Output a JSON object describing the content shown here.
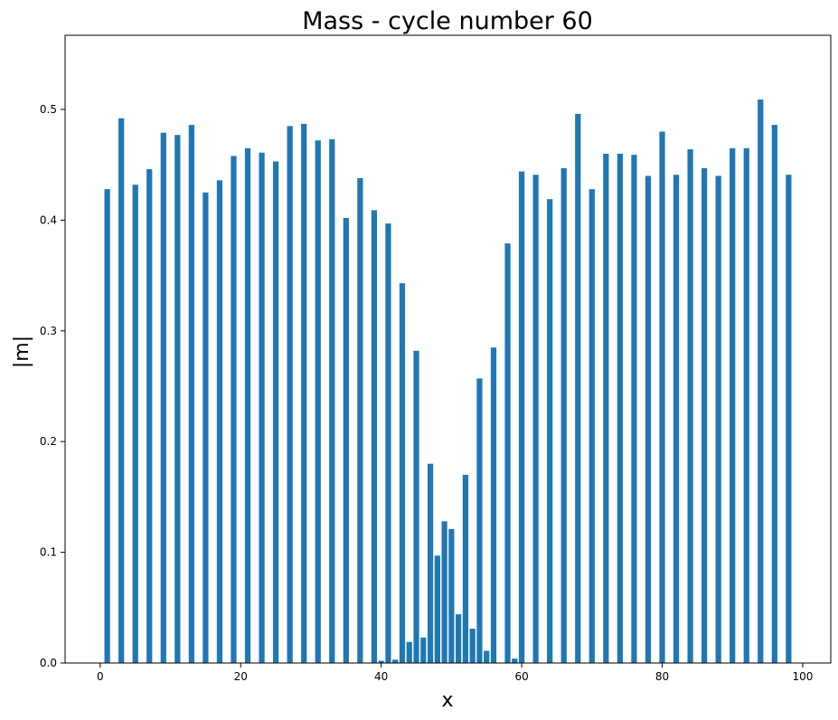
{
  "chart_data": {
    "type": "bar",
    "title": "Mass - cycle number 60",
    "xlabel": "x",
    "ylabel": "|m|",
    "xlim": [
      -5,
      104
    ],
    "ylim": [
      0,
      0.567
    ],
    "xticks": [
      0,
      20,
      40,
      60,
      80,
      100
    ],
    "yticks": [
      0.0,
      0.1,
      0.2,
      0.3,
      0.4,
      0.5
    ],
    "xtick_labels": [
      "0",
      "20",
      "40",
      "60",
      "80",
      "100"
    ],
    "ytick_labels": [
      "0.0",
      "0.1",
      "0.2",
      "0.3",
      "0.4",
      "0.5"
    ],
    "bar_width": 0.8,
    "bar_color": "#1f77b4",
    "grid": false,
    "legend": "none",
    "x": [
      1,
      3,
      5,
      7,
      9,
      11,
      13,
      15,
      17,
      19,
      21,
      23,
      25,
      27,
      29,
      31,
      33,
      35,
      37,
      39,
      40,
      41,
      42,
      43,
      44,
      45,
      46,
      47,
      48,
      49,
      50,
      51,
      52,
      53,
      54,
      55,
      56,
      57,
      58,
      59,
      60,
      62,
      64,
      66,
      68,
      70,
      72,
      74,
      76,
      78,
      80,
      82,
      84,
      86,
      88,
      90,
      92,
      94,
      96,
      98
    ],
    "values": [
      0.428,
      0.492,
      0.432,
      0.446,
      0.479,
      0.477,
      0.486,
      0.425,
      0.436,
      0.458,
      0.465,
      0.461,
      0.453,
      0.485,
      0.487,
      0.472,
      0.473,
      0.402,
      0.438,
      0.409,
      0.002,
      0.397,
      0.003,
      0.343,
      0.019,
      0.282,
      0.023,
      0.18,
      0.097,
      0.128,
      0.121,
      0.044,
      0.17,
      0.031,
      0.257,
      0.011,
      0.285,
      0.0,
      0.379,
      0.004,
      0.444,
      0.441,
      0.419,
      0.447,
      0.496,
      0.428,
      0.46,
      0.46,
      0.459,
      0.44,
      0.48,
      0.441,
      0.464,
      0.447,
      0.44,
      0.465,
      0.465,
      0.509,
      0.486,
      0.441
    ]
  }
}
